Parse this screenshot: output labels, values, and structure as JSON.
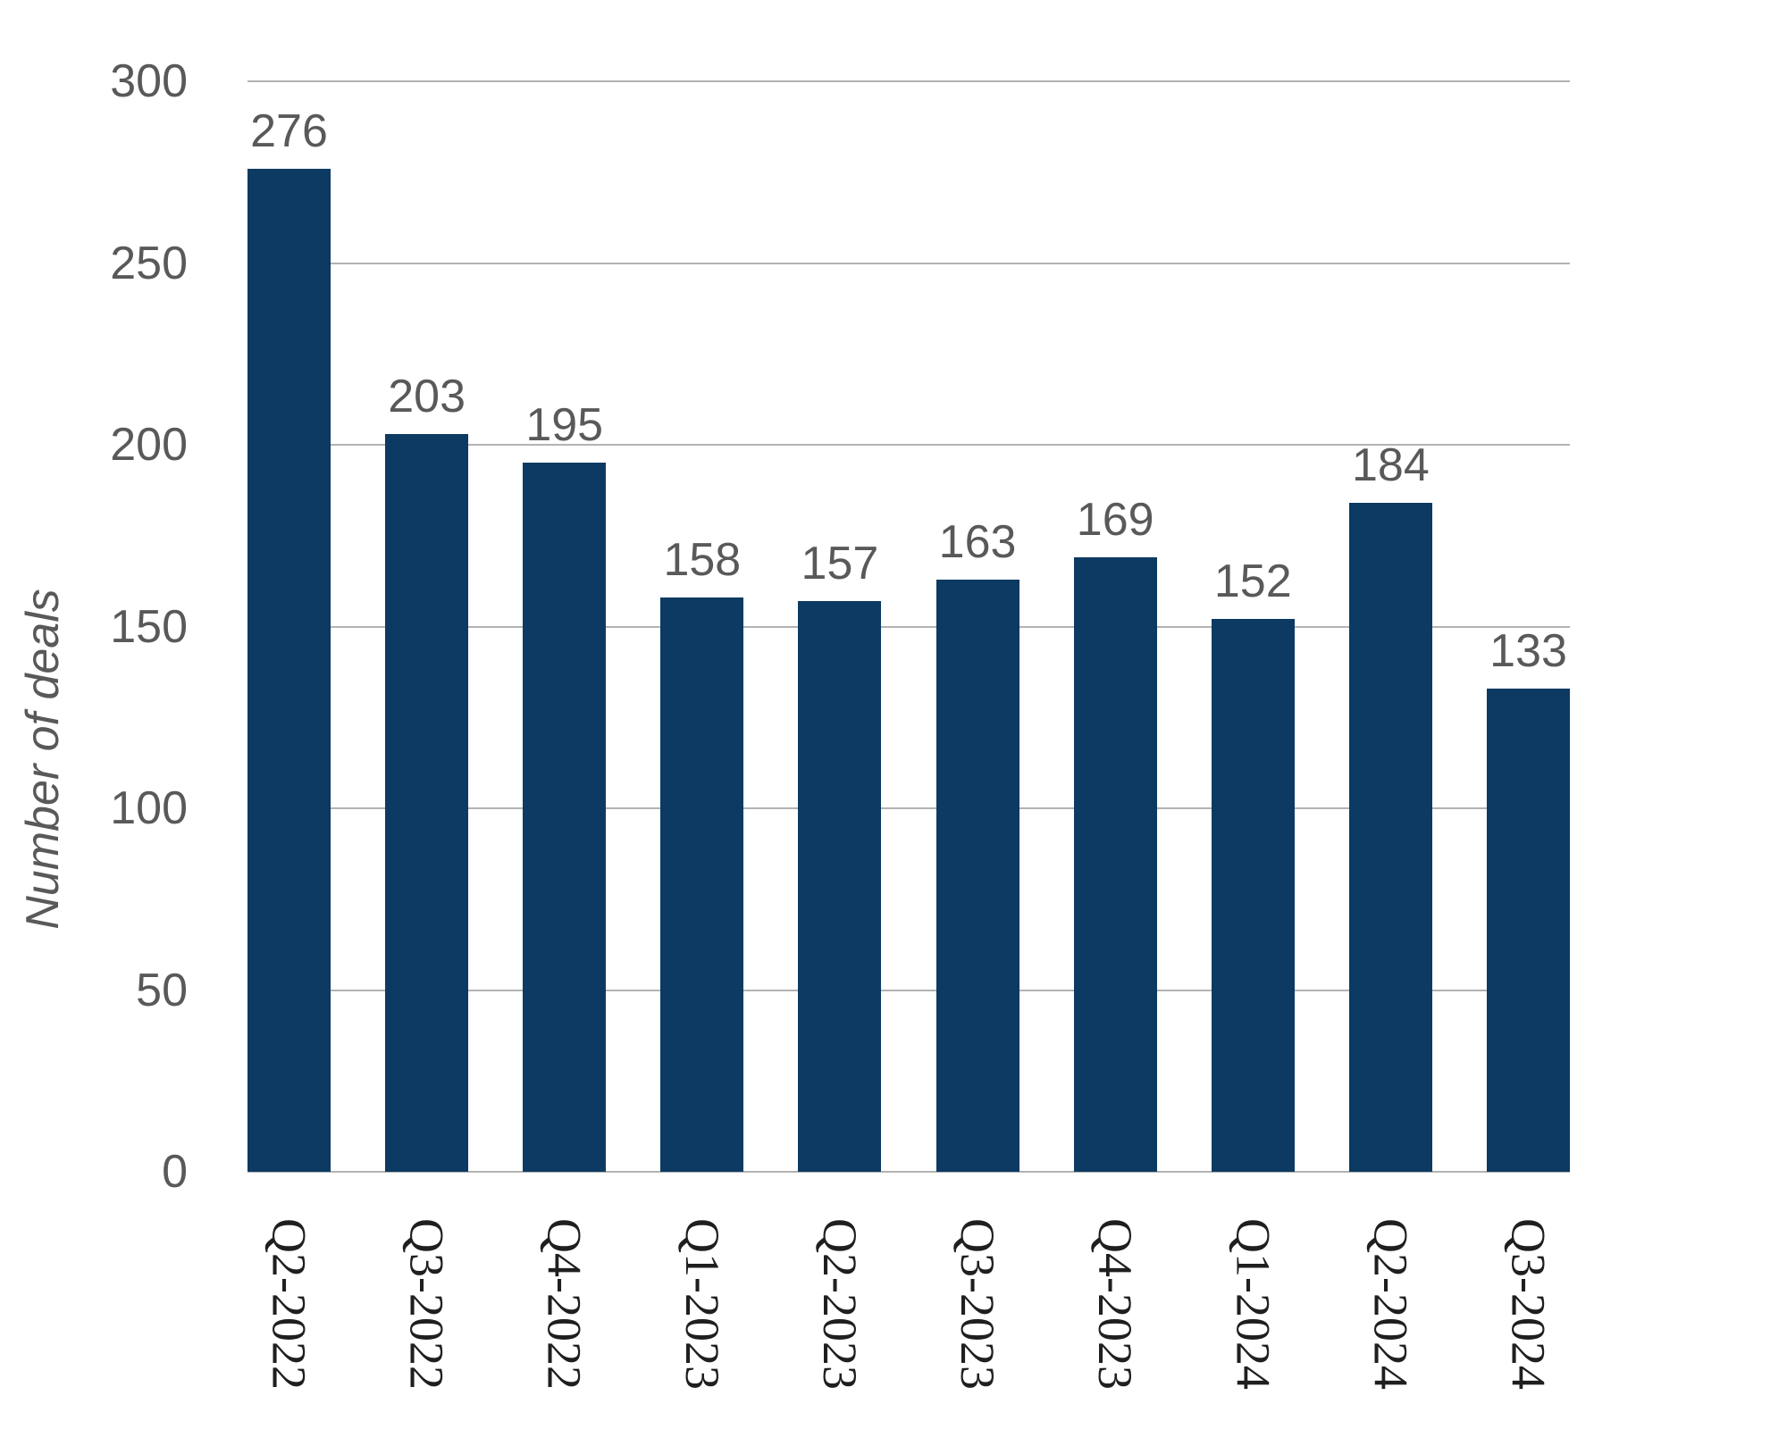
{
  "chart_data": {
    "type": "bar",
    "categories": [
      "Q2-2022",
      "Q3-2022",
      "Q4-2022",
      "Q1-2023",
      "Q2-2023",
      "Q3-2023",
      "Q4-2023",
      "Q1-2024",
      "Q2-2024",
      "Q3-2024"
    ],
    "values": [
      276,
      203,
      195,
      158,
      157,
      163,
      169,
      152,
      184,
      133
    ],
    "ylabel": "Number of deals",
    "xlabel": "",
    "ylim": [
      0,
      300
    ],
    "yticks": [
      0,
      50,
      100,
      150,
      200,
      250,
      300
    ],
    "grid": "horizontal",
    "legend": "none",
    "value_labels_shown": true,
    "bar_color": "#0c3a62",
    "gridline_color": "#b3b3b3",
    "tick_label_color": "#595959",
    "x_tick_label_color": "#1f1f1f"
  }
}
